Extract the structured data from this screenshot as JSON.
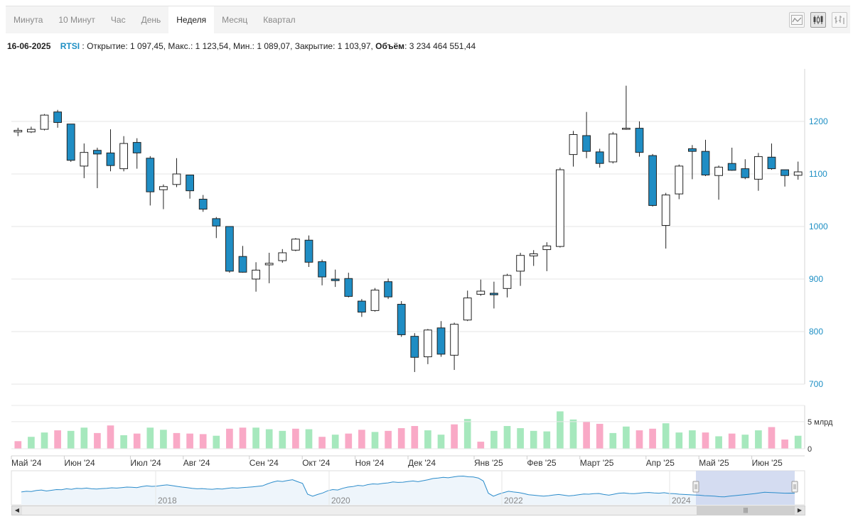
{
  "tabs": [
    {
      "label": "Минута",
      "active": false
    },
    {
      "label": "10 Минут",
      "active": false
    },
    {
      "label": "Час",
      "active": false
    },
    {
      "label": "День",
      "active": false
    },
    {
      "label": "Неделя",
      "active": true
    },
    {
      "label": "Месяц",
      "active": false
    },
    {
      "label": "Квартал",
      "active": false
    }
  ],
  "view_buttons": [
    "line-chart-icon",
    "candlestick-icon",
    "ohlc-icon"
  ],
  "info": {
    "date": "16-06-2025",
    "ticker": "RTSI",
    "sep": " : ",
    "open_label": "Открытие:",
    "open": "1 097,45",
    "high_label": "Макс.:",
    "high": "1 123,54",
    "low_label": "Мин.:",
    "low": "1 089,07",
    "close_label": "Закрытие:",
    "close": "1 103,97",
    "volume_label": "Объём",
    "volume": "3 234 464 551,44"
  },
  "colors": {
    "up_fill": "#ffffff",
    "down_fill": "#1f8dc4",
    "vol_up": "#a6e8bd",
    "vol_down": "#f9a9c6",
    "axis_text": "#1d8fc4",
    "navigator_line": "#2b8ccb",
    "navigator_sel": "#ccd6ee"
  },
  "chart_data": [
    {
      "type": "candlestick",
      "x_tick_labels": [
        "Май '24",
        "Июн '24",
        "Июл '24",
        "Авг '24",
        "Сен '24",
        "Окт '24",
        "Ноя '24",
        "Дек '24",
        "Янв '25",
        "Фев '25",
        "Март '25",
        "Апр '25",
        "Май '25",
        "Июн '25"
      ],
      "y_ticks": [
        700,
        800,
        900,
        1000,
        1100,
        1200
      ],
      "ylim": [
        700,
        1300
      ],
      "ohlc": [
        [
          1180,
          1188,
          1172,
          1183
        ],
        [
          1180,
          1190,
          1178,
          1185
        ],
        [
          1185,
          1214,
          1183,
          1212
        ],
        [
          1218,
          1222,
          1188,
          1198
        ],
        [
          1195,
          1195,
          1123,
          1126
        ],
        [
          1115,
          1158,
          1092,
          1141
        ],
        [
          1145,
          1150,
          1073,
          1138
        ],
        [
          1140,
          1185,
          1105,
          1116
        ],
        [
          1110,
          1172,
          1105,
          1158
        ],
        [
          1160,
          1168,
          1110,
          1140
        ],
        [
          1130,
          1134,
          1040,
          1066
        ],
        [
          1070,
          1080,
          1033,
          1076
        ],
        [
          1080,
          1130,
          1075,
          1100
        ],
        [
          1098,
          1098,
          1053,
          1068
        ],
        [
          1052,
          1060,
          1028,
          1033
        ],
        [
          1015,
          1018,
          978,
          1001
        ],
        [
          1000,
          1000,
          912,
          915
        ],
        [
          943,
          963,
          912,
          913
        ],
        [
          900,
          932,
          876,
          917
        ],
        [
          927,
          950,
          892,
          930
        ],
        [
          935,
          957,
          931,
          950
        ],
        [
          955,
          978,
          953,
          976
        ],
        [
          974,
          983,
          923,
          932
        ],
        [
          933,
          937,
          888,
          904
        ],
        [
          900,
          918,
          885,
          897
        ],
        [
          901,
          912,
          865,
          867
        ],
        [
          858,
          862,
          828,
          837
        ],
        [
          840,
          883,
          838,
          879
        ],
        [
          895,
          901,
          862,
          866
        ],
        [
          852,
          858,
          790,
          794
        ],
        [
          791,
          797,
          723,
          751
        ],
        [
          752,
          805,
          738,
          803
        ],
        [
          807,
          820,
          752,
          757
        ],
        [
          755,
          817,
          727,
          814
        ],
        [
          822,
          878,
          820,
          864
        ],
        [
          871,
          899,
          868,
          877
        ],
        [
          873,
          895,
          844,
          870
        ],
        [
          882,
          910,
          865,
          907
        ],
        [
          915,
          950,
          887,
          945
        ],
        [
          944,
          955,
          925,
          948
        ],
        [
          956,
          970,
          915,
          963
        ],
        [
          962,
          1112,
          960,
          1108
        ],
        [
          1137,
          1182,
          1114,
          1175
        ],
        [
          1173,
          1218,
          1130,
          1143
        ],
        [
          1142,
          1148,
          1112,
          1120
        ],
        [
          1123,
          1180,
          1120,
          1176
        ],
        [
          1185,
          1268,
          1184,
          1187
        ],
        [
          1187,
          1200,
          1133,
          1141
        ],
        [
          1135,
          1138,
          1038,
          1040
        ],
        [
          1002,
          1064,
          958,
          1060
        ],
        [
          1062,
          1118,
          1052,
          1115
        ],
        [
          1148,
          1155,
          1090,
          1143
        ],
        [
          1143,
          1165,
          1096,
          1098
        ],
        [
          1097,
          1116,
          1051,
          1113
        ],
        [
          1120,
          1150,
          1106,
          1107
        ],
        [
          1110,
          1128,
          1090,
          1093
        ],
        [
          1090,
          1140,
          1068,
          1133
        ],
        [
          1132,
          1158,
          1108,
          1110
        ],
        [
          1108,
          1108,
          1076,
          1097
        ],
        [
          1097.45,
          1123.54,
          1089.07,
          1103.97
        ]
      ]
    },
    {
      "type": "bar",
      "name": "volume",
      "y_ticks": [
        0,
        5
      ],
      "y_tick_labels": [
        "0",
        "5 млрд"
      ],
      "ylim": [
        0,
        8
      ],
      "values": [
        1.4,
        2.2,
        3.0,
        3.4,
        3.3,
        3.9,
        2.9,
        4.3,
        2.5,
        2.8,
        3.9,
        3.5,
        2.9,
        2.8,
        2.7,
        2.4,
        3.7,
        3.9,
        3.9,
        3.6,
        3.3,
        3.7,
        3.6,
        2.2,
        2.6,
        2.8,
        3.5,
        3.1,
        3.3,
        3.8,
        4.2,
        3.4,
        2.6,
        4.5,
        5.5,
        1.3,
        3.3,
        4.2,
        3.8,
        3.3,
        3.2,
        6.9,
        5.4,
        5.0,
        4.6,
        2.9,
        4.1,
        3.4,
        3.7,
        4.7,
        3.0,
        3.4,
        3.0,
        2.3,
        2.8,
        2.6,
        3.4,
        4.0,
        1.7,
        2.4
      ],
      "up": [
        false,
        true,
        true,
        false,
        true,
        true,
        false,
        false,
        true,
        false,
        true,
        true,
        false,
        false,
        false,
        true,
        false,
        false,
        true,
        true,
        true,
        false,
        true,
        false,
        true,
        false,
        false,
        true,
        false,
        false,
        false,
        true,
        true,
        false,
        true,
        false,
        true,
        true,
        true,
        true,
        true,
        true,
        true,
        false,
        false,
        true,
        true,
        false,
        false,
        true,
        true,
        true,
        false,
        true,
        false,
        true,
        true,
        false,
        false,
        true
      ]
    },
    {
      "type": "line",
      "name": "navigator",
      "x_tick_labels": [
        "2018",
        "2020",
        "2022",
        "2024"
      ],
      "values": [
        1150,
        1180,
        1170,
        1210,
        1230,
        1190,
        1220,
        1250,
        1240,
        1280,
        1260,
        1300,
        1290,
        1310,
        1280,
        1270,
        1290,
        1300,
        1320,
        1310,
        1330,
        1350,
        1340,
        1330,
        1370,
        1400,
        1380,
        1390,
        1420,
        1440,
        1410,
        1380,
        1350,
        1330,
        1300,
        1280,
        1290,
        1270,
        1260,
        1280,
        1270,
        1300,
        1320,
        1310,
        1330,
        1340,
        1360,
        1380,
        1400,
        1480,
        1550,
        1600,
        1580,
        1620,
        1650,
        1570,
        1500,
        1060,
        980,
        1050,
        1110,
        1200,
        1250,
        1230,
        1300,
        1350,
        1370,
        1420,
        1400,
        1450,
        1480,
        1470,
        1500,
        1520,
        1560,
        1540,
        1550,
        1580,
        1600,
        1570,
        1610,
        1650,
        1700,
        1720,
        1750,
        1730,
        1760,
        1790,
        1800,
        1770,
        1760,
        1720,
        1600,
        1100,
        980,
        1060,
        1120,
        1180,
        1150,
        1130,
        1090,
        1040,
        1020,
        1000,
        980,
        1000,
        1030,
        1050,
        1020,
        990,
        1010,
        1040,
        1070,
        1060,
        1080,
        1090,
        1050,
        1020,
        1060,
        1100,
        1110,
        1090,
        1080,
        1100,
        1120,
        1130,
        1110,
        1100,
        1120,
        1090,
        1080,
        1060,
        1050,
        1040,
        1030,
        1020,
        1000,
        990,
        980,
        960,
        950,
        980,
        1000,
        1020,
        1040,
        1060,
        1080,
        1110,
        1140,
        1130,
        1120,
        1110,
        1100,
        1105,
        1100
      ]
    }
  ]
}
